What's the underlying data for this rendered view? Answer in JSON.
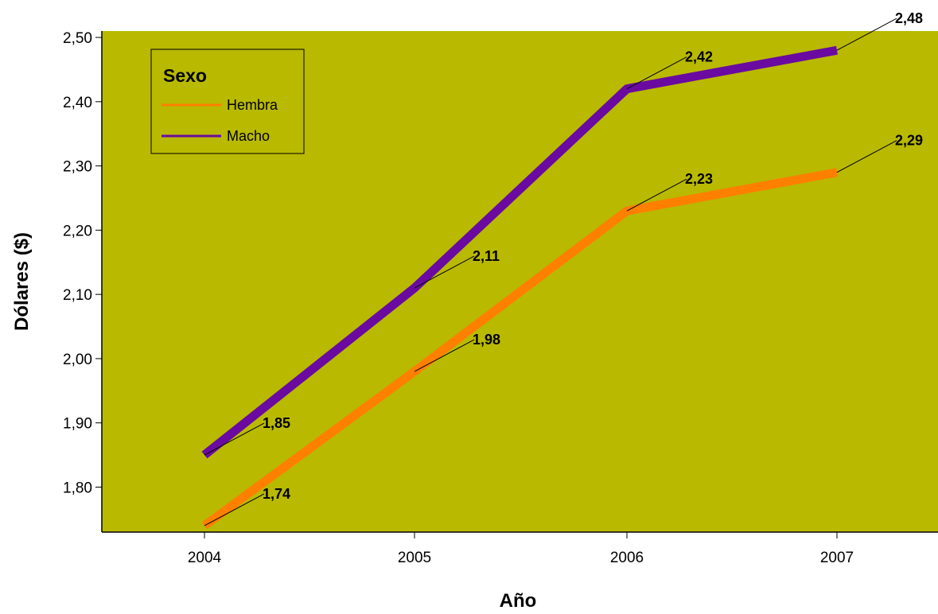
{
  "chart_data": {
    "type": "line",
    "title": "",
    "xlabel": "Año",
    "ylabel": "Dólares ($)",
    "x": [
      "2004",
      "2005",
      "2006",
      "2007"
    ],
    "ylim": [
      1.73,
      2.51
    ],
    "yticks": [
      1.8,
      1.9,
      2.0,
      2.1,
      2.2,
      2.3,
      2.4,
      2.5
    ],
    "ytick_labels": [
      "1,80",
      "1,90",
      "2,00",
      "2,10",
      "2,20",
      "2,30",
      "2,40",
      "2,50"
    ],
    "grid": false,
    "background_color": "#b9b900",
    "legend": {
      "title": "Sexo",
      "placement": "top-left"
    },
    "series": [
      {
        "name": "Hembra",
        "color": "#ff7f00",
        "values": [
          1.74,
          1.98,
          2.23,
          2.29
        ],
        "labels": [
          "1,74",
          "1,98",
          "2,23",
          "2,29"
        ]
      },
      {
        "name": "Macho",
        "color": "#6a0aa0",
        "values": [
          1.85,
          2.11,
          2.42,
          2.48
        ],
        "labels": [
          "1,85",
          "2,11",
          "2,42",
          "2,48"
        ]
      }
    ]
  }
}
